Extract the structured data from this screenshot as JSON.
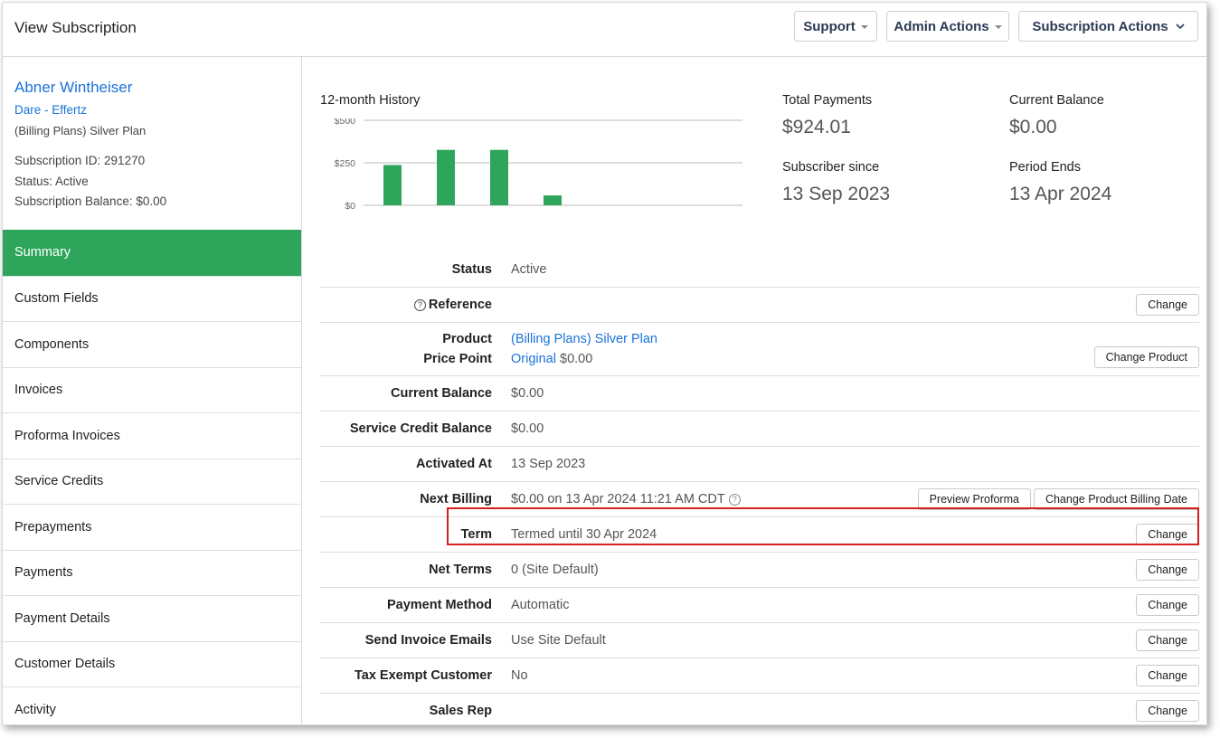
{
  "header": {
    "title": "View Subscription",
    "support_label": "Support",
    "admin_label": "Admin Actions",
    "subscription_label": "Subscription Actions"
  },
  "customer": {
    "name": "Abner Wintheiser",
    "org": "Dare - Effertz",
    "plan": "(Billing Plans) Silver Plan",
    "subscription_id": "Subscription ID: 291270",
    "status": "Status: Active",
    "balance": "Subscription Balance: $0.00"
  },
  "nav": [
    {
      "label": "Summary",
      "active": true
    },
    {
      "label": "Custom Fields"
    },
    {
      "label": "Components"
    },
    {
      "label": "Invoices"
    },
    {
      "label": "Proforma Invoices"
    },
    {
      "label": "Service Credits"
    },
    {
      "label": "Prepayments"
    },
    {
      "label": "Payments"
    },
    {
      "label": "Payment Details"
    },
    {
      "label": "Customer Details"
    },
    {
      "label": "Activity"
    }
  ],
  "history": {
    "title": "12-month History"
  },
  "chart_data": {
    "type": "bar",
    "title": "12-month History",
    "ytick_labels": [
      "$500",
      "$250",
      "$0"
    ],
    "ylim": [
      0,
      500
    ],
    "values": [
      237,
      326,
      326,
      58
    ],
    "color": "#2ea55b"
  },
  "stats": {
    "total_payments_label": "Total Payments",
    "total_payments_value": "$924.01",
    "current_balance_label": "Current Balance",
    "current_balance_value": "$0.00",
    "subscriber_since_label": "Subscriber since",
    "subscriber_since_value": "13 Sep 2023",
    "period_ends_label": "Period Ends",
    "period_ends_value": "13 Apr 2024"
  },
  "props": {
    "status_label": "Status",
    "status_value": "Active",
    "reference_label": "Reference",
    "change_label": "Change",
    "product_label": "Product",
    "product_value": "(Billing Plans) Silver Plan",
    "price_point_label": "Price Point",
    "price_point_link": "Original",
    "price_point_value": "$0.00",
    "change_product_label": "Change Product",
    "current_balance_label": "Current Balance",
    "current_balance_value": "$0.00",
    "service_credit_label": "Service Credit Balance",
    "service_credit_value": "$0.00",
    "activated_label": "Activated At",
    "activated_value": "13 Sep 2023",
    "next_billing_label": "Next Billing",
    "next_billing_value": "$0.00 on 13 Apr 2024 11:21 AM CDT",
    "preview_proforma_label": "Preview Proforma",
    "change_billing_date_label": "Change Product Billing Date",
    "term_label": "Term",
    "term_value": "Termed until 30 Apr 2024",
    "net_terms_label": "Net Terms",
    "net_terms_value": "0 (Site Default)",
    "payment_method_label": "Payment Method",
    "payment_method_value": "Automatic",
    "send_invoice_label": "Send Invoice Emails",
    "send_invoice_value": "Use Site Default",
    "tax_exempt_label": "Tax Exempt Customer",
    "tax_exempt_value": "No",
    "sales_rep_label": "Sales Rep"
  }
}
